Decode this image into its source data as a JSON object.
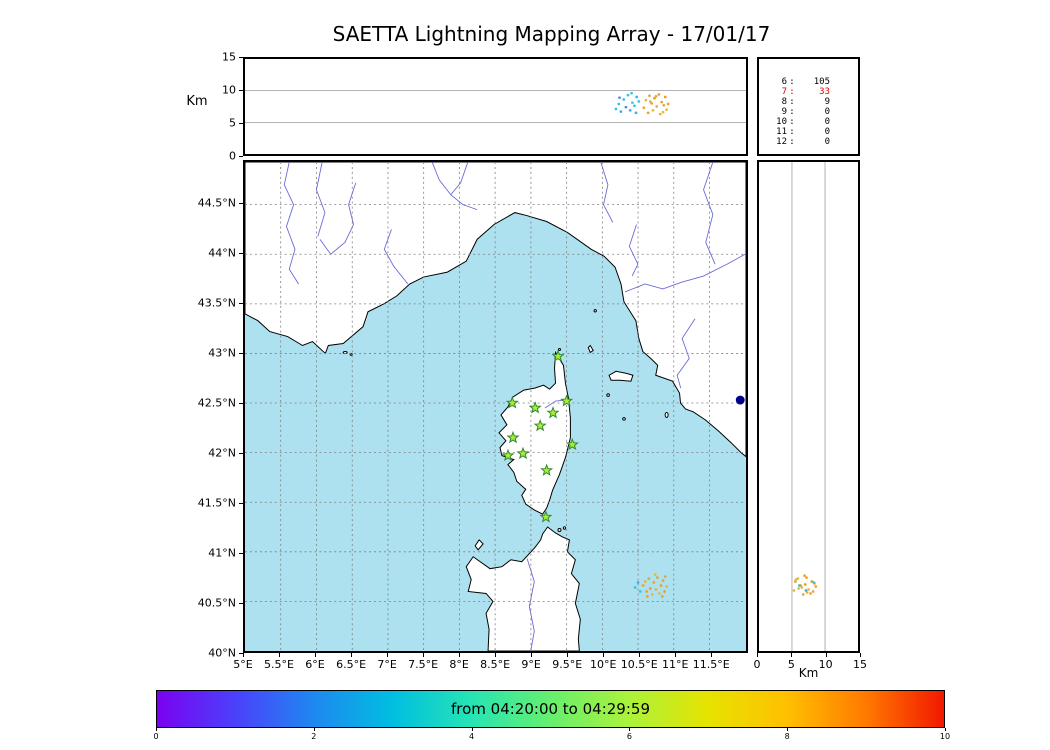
{
  "title": "SAETTA Lightning Mapping Array - 17/01/17",
  "colors": {
    "sea": "#aee1ef",
    "land": "#ffffff",
    "coastline": "#000000",
    "river": "#6a6ad8",
    "map_grid": "#7d7d7d",
    "panel_grid": "#9a9a9a",
    "stats_highlight": "#e00000",
    "station_fill": "#aaee33",
    "station_edge": "#338833"
  },
  "chart_data": [
    {
      "name": "alt-lon-panel",
      "type": "scatter",
      "title": "",
      "xlabel": "",
      "ylabel": "Km",
      "xlim": [
        5,
        12.01
      ],
      "ylim": [
        0,
        15
      ],
      "yticks": [
        {
          "v": 0,
          "label": "0"
        },
        {
          "v": 5,
          "label": "5"
        },
        {
          "v": 10,
          "label": "10"
        },
        {
          "v": 15,
          "label": "15"
        }
      ],
      "points": [
        {
          "x": 10.19,
          "y": 7.1,
          "c": "#2fc6de"
        },
        {
          "x": 10.23,
          "y": 7.9,
          "c": "#2fc6de"
        },
        {
          "x": 10.26,
          "y": 6.7,
          "c": "#38b0e8"
        },
        {
          "x": 10.3,
          "y": 8.6,
          "c": "#2fc6de"
        },
        {
          "x": 10.33,
          "y": 7.4,
          "c": "#4f86f0"
        },
        {
          "x": 10.36,
          "y": 9.3,
          "c": "#2fc6de"
        },
        {
          "x": 10.39,
          "y": 6.9,
          "c": "#38b0e8"
        },
        {
          "x": 10.42,
          "y": 8.1,
          "c": "#2fd2cc"
        },
        {
          "x": 10.45,
          "y": 7.6,
          "c": "#2fc6de"
        },
        {
          "x": 10.48,
          "y": 9.0,
          "c": "#38b0e8"
        },
        {
          "x": 10.51,
          "y": 8.3,
          "c": "#2fc6de"
        },
        {
          "x": 10.24,
          "y": 8.9,
          "c": "#4f86f0"
        },
        {
          "x": 10.41,
          "y": 9.6,
          "c": "#2fc6de"
        },
        {
          "x": 10.47,
          "y": 6.5,
          "c": "#38b0e8"
        },
        {
          "x": 10.58,
          "y": 7.3,
          "c": "#f0a228"
        },
        {
          "x": 10.61,
          "y": 8.5,
          "c": "#e6b83e"
        },
        {
          "x": 10.64,
          "y": 6.5,
          "c": "#f0a228"
        },
        {
          "x": 10.66,
          "y": 9.2,
          "c": "#d8aa48"
        },
        {
          "x": 10.69,
          "y": 8.0,
          "c": "#f0a228"
        },
        {
          "x": 10.71,
          "y": 6.9,
          "c": "#e6b83e"
        },
        {
          "x": 10.73,
          "y": 8.8,
          "c": "#f09a20"
        },
        {
          "x": 10.76,
          "y": 7.5,
          "c": "#e0b050"
        },
        {
          "x": 10.79,
          "y": 9.4,
          "c": "#f0a228"
        },
        {
          "x": 10.81,
          "y": 6.3,
          "c": "#e6b83e"
        },
        {
          "x": 10.83,
          "y": 8.2,
          "c": "#f0a228"
        },
        {
          "x": 10.86,
          "y": 7.7,
          "c": "#d8aa48"
        },
        {
          "x": 10.88,
          "y": 9.0,
          "c": "#f09a20"
        },
        {
          "x": 10.9,
          "y": 7.0,
          "c": "#e6b83e"
        },
        {
          "x": 10.92,
          "y": 7.9,
          "c": "#f0a228"
        },
        {
          "x": 10.67,
          "y": 8.3,
          "c": "#e0b050"
        },
        {
          "x": 10.75,
          "y": 9.1,
          "c": "#f0a228"
        },
        {
          "x": 10.85,
          "y": 6.6,
          "c": "#e6b83e"
        }
      ]
    },
    {
      "name": "map-panel",
      "type": "scatter",
      "xlim": [
        5,
        12.01
      ],
      "ylim": [
        40,
        44.93
      ],
      "xticks": [
        {
          "v": 5,
          "label": "5°E"
        },
        {
          "v": 5.5,
          "label": "5.5°E"
        },
        {
          "v": 6,
          "label": "6°E"
        },
        {
          "v": 6.5,
          "label": "6.5°E"
        },
        {
          "v": 7,
          "label": "7°E"
        },
        {
          "v": 7.5,
          "label": "7.5°E"
        },
        {
          "v": 8,
          "label": "8°E"
        },
        {
          "v": 8.5,
          "label": "8.5°E"
        },
        {
          "v": 9,
          "label": "9°E"
        },
        {
          "v": 9.5,
          "label": "9.5°E"
        },
        {
          "v": 10,
          "label": "10°E"
        },
        {
          "v": 10.5,
          "label": "10.5°E"
        },
        {
          "v": 11,
          "label": "11°E"
        },
        {
          "v": 11.5,
          "label": "11.5°E"
        }
      ],
      "yticks": [
        {
          "v": 44.5,
          "label": "44.5°N"
        },
        {
          "v": 44,
          "label": "44°N"
        },
        {
          "v": 43.5,
          "label": "43.5°N"
        },
        {
          "v": 43,
          "label": "43°N"
        },
        {
          "v": 42.5,
          "label": "42.5°N"
        },
        {
          "v": 42,
          "label": "42°N"
        },
        {
          "v": 41.5,
          "label": "41.5°N"
        },
        {
          "v": 41,
          "label": "41°N"
        },
        {
          "v": 40.5,
          "label": "40.5°N"
        },
        {
          "v": 40,
          "label": "40°N"
        }
      ],
      "stations": {
        "marker": "star",
        "locations": [
          [
            9.38,
            42.97
          ],
          [
            8.74,
            42.5
          ],
          [
            9.06,
            42.45
          ],
          [
            9.5,
            42.52
          ],
          [
            9.31,
            42.4
          ],
          [
            9.13,
            42.27
          ],
          [
            8.75,
            42.15
          ],
          [
            9.58,
            42.08
          ],
          [
            8.68,
            41.97
          ],
          [
            8.89,
            41.99
          ],
          [
            9.22,
            41.82
          ],
          [
            9.21,
            41.35
          ]
        ]
      },
      "points": [
        {
          "x": 10.57,
          "y": 40.66,
          "c": "#f0a228"
        },
        {
          "x": 10.6,
          "y": 40.7,
          "c": "#e6b83e"
        },
        {
          "x": 10.62,
          "y": 40.6,
          "c": "#f0a228"
        },
        {
          "x": 10.65,
          "y": 40.73,
          "c": "#d8aa48"
        },
        {
          "x": 10.67,
          "y": 40.63,
          "c": "#f09a20"
        },
        {
          "x": 10.7,
          "y": 40.57,
          "c": "#e6b83e"
        },
        {
          "x": 10.72,
          "y": 40.69,
          "c": "#f0a228"
        },
        {
          "x": 10.75,
          "y": 40.62,
          "c": "#e0b050"
        },
        {
          "x": 10.77,
          "y": 40.74,
          "c": "#f0a228"
        },
        {
          "x": 10.8,
          "y": 40.58,
          "c": "#e6b83e"
        },
        {
          "x": 10.82,
          "y": 40.66,
          "c": "#f0a228"
        },
        {
          "x": 10.85,
          "y": 40.71,
          "c": "#d8aa48"
        },
        {
          "x": 10.87,
          "y": 40.6,
          "c": "#f09a20"
        },
        {
          "x": 10.9,
          "y": 40.65,
          "c": "#e6b83e"
        },
        {
          "x": 10.63,
          "y": 40.55,
          "c": "#f0a228"
        },
        {
          "x": 10.74,
          "y": 40.77,
          "c": "#e6b83e"
        },
        {
          "x": 10.84,
          "y": 40.55,
          "c": "#f0a228"
        },
        {
          "x": 10.88,
          "y": 40.75,
          "c": "#d8aa48"
        },
        {
          "x": 10.46,
          "y": 40.64,
          "c": "#2fc6de"
        },
        {
          "x": 10.5,
          "y": 40.69,
          "c": "#38b0e8"
        },
        {
          "x": 10.53,
          "y": 40.6,
          "c": "#2fc6de"
        },
        {
          "x": 11.93,
          "y": 42.53,
          "c": "#00008b",
          "r": 4.5
        }
      ]
    },
    {
      "name": "alt-lat-panel",
      "type": "scatter",
      "xlabel": "Km",
      "xlim": [
        0,
        15
      ],
      "ylim": [
        40,
        44.93
      ],
      "xticks": [
        {
          "v": 0,
          "label": "0"
        },
        {
          "v": 5,
          "label": "5"
        },
        {
          "v": 10,
          "label": "10"
        },
        {
          "v": 15,
          "label": "15"
        }
      ],
      "points": [
        {
          "x": 6.3,
          "y": 40.66,
          "c": "#f0a228"
        },
        {
          "x": 7.5,
          "y": 40.62,
          "c": "#e6b83e"
        },
        {
          "x": 5.5,
          "y": 40.7,
          "c": "#f0a228"
        },
        {
          "x": 8.2,
          "y": 40.6,
          "c": "#d8aa48"
        },
        {
          "x": 7.0,
          "y": 40.67,
          "c": "#f09a20"
        },
        {
          "x": 5.9,
          "y": 40.73,
          "c": "#e6b83e"
        },
        {
          "x": 7.8,
          "y": 40.58,
          "c": "#f0a228"
        },
        {
          "x": 6.5,
          "y": 40.64,
          "c": "#e0b050"
        },
        {
          "x": 8.4,
          "y": 40.68,
          "c": "#f0a228"
        },
        {
          "x": 5.3,
          "y": 40.61,
          "c": "#e6b83e"
        },
        {
          "x": 7.2,
          "y": 40.74,
          "c": "#f0a228"
        },
        {
          "x": 6.7,
          "y": 40.57,
          "c": "#d8aa48"
        },
        {
          "x": 8.0,
          "y": 40.7,
          "c": "#f09a20"
        },
        {
          "x": 6.0,
          "y": 40.63,
          "c": "#e6b83e"
        },
        {
          "x": 6.9,
          "y": 40.76,
          "c": "#f0a228"
        },
        {
          "x": 7.3,
          "y": 40.59,
          "c": "#e0b050"
        },
        {
          "x": 8.6,
          "y": 40.65,
          "c": "#f0a228"
        },
        {
          "x": 5.6,
          "y": 40.72,
          "c": "#e6b83e"
        },
        {
          "x": 6.1,
          "y": 40.66,
          "c": "#2fc6de"
        },
        {
          "x": 7.1,
          "y": 40.61,
          "c": "#38b0e8"
        },
        {
          "x": 8.3,
          "y": 40.69,
          "c": "#2fc6de"
        }
      ]
    },
    {
      "name": "station-stats",
      "type": "table",
      "rows": [
        {
          "stations": "6",
          "count": "105",
          "highlight": false
        },
        {
          "stations": "7",
          "count": "33",
          "highlight": true
        },
        {
          "stations": "8",
          "count": "9",
          "highlight": false
        },
        {
          "stations": "9",
          "count": "0",
          "highlight": false
        },
        {
          "stations": "10",
          "count": "0",
          "highlight": false
        },
        {
          "stations": "11",
          "count": "0",
          "highlight": false
        },
        {
          "stations": "12",
          "count": "0",
          "highlight": false
        }
      ]
    },
    {
      "name": "time-colorbar",
      "type": "colorbar",
      "label": "from 04:20:00 to 04:29:59",
      "range": [
        0,
        10
      ],
      "ticks": [
        {
          "v": 0,
          "label": "0"
        },
        {
          "v": 2,
          "label": "2"
        },
        {
          "v": 4,
          "label": "4"
        },
        {
          "v": 6,
          "label": "6"
        },
        {
          "v": 8,
          "label": "8"
        },
        {
          "v": 10,
          "label": "10"
        }
      ],
      "gradient": [
        "#7a02f0",
        "#4b41fb",
        "#1e88f0",
        "#00bfe0",
        "#27e4b4",
        "#66ef6e",
        "#abf23b",
        "#e6e300",
        "#ffc000",
        "#ff7a00",
        "#f21800"
      ]
    }
  ]
}
